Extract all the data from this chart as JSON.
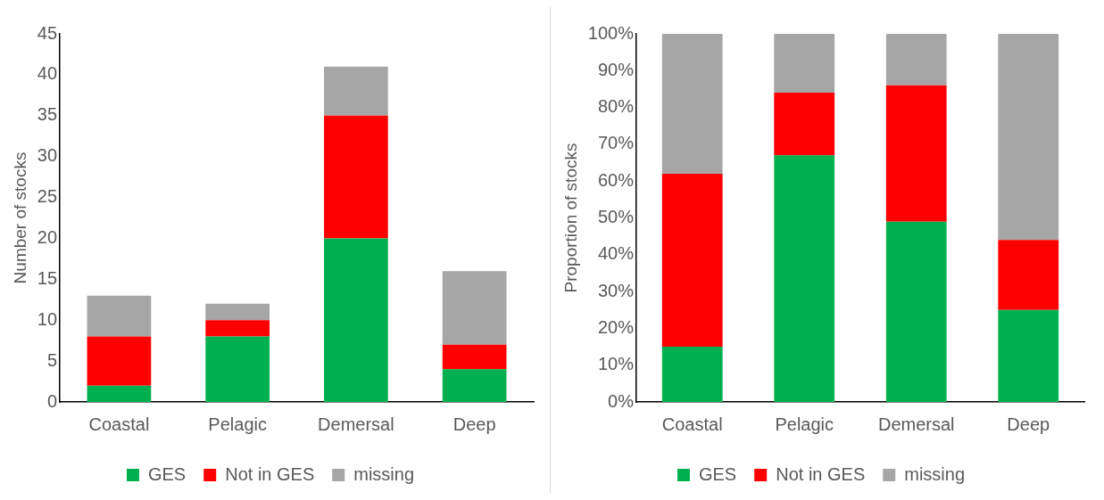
{
  "chart_data": [
    {
      "type": "bar",
      "ylabel": "Number of stocks",
      "categories": [
        "Coastal",
        "Pelagic",
        "Demersal",
        "Deep"
      ],
      "stacked": true,
      "legend": "bottom",
      "ylim": [
        0,
        45
      ],
      "yticks": [
        0,
        5,
        10,
        15,
        20,
        25,
        30,
        35,
        40,
        45
      ],
      "series": [
        {
          "name": "GES",
          "color": "#00b050",
          "values": [
            2,
            8,
            20,
            4
          ]
        },
        {
          "name": "Not in GES",
          "color": "#ff0000",
          "values": [
            6,
            2,
            15,
            3
          ]
        },
        {
          "name": "missing",
          "color": "#a6a6a6",
          "values": [
            5,
            2,
            6,
            9
          ]
        }
      ]
    },
    {
      "type": "bar",
      "ylabel": "Proportion of stocks",
      "categories": [
        "Coastal",
        "Pelagic",
        "Demersal",
        "Deep"
      ],
      "stacked": true,
      "legend": "bottom",
      "ylim": [
        0,
        100
      ],
      "yticks": [
        {
          "value": 0,
          "label": "0%"
        },
        {
          "value": 10,
          "label": "10%"
        },
        {
          "value": 20,
          "label": "20%"
        },
        {
          "value": 30,
          "label": "30%"
        },
        {
          "value": 40,
          "label": "40%"
        },
        {
          "value": 50,
          "label": "50%"
        },
        {
          "value": 60,
          "label": "60%"
        },
        {
          "value": 70,
          "label": "70%"
        },
        {
          "value": 80,
          "label": "80%"
        },
        {
          "value": 90,
          "label": "90%"
        },
        {
          "value": 100,
          "label": "100%"
        }
      ],
      "series": [
        {
          "name": "GES",
          "color": "#00b050",
          "values": [
            15,
            67,
            49,
            25
          ]
        },
        {
          "name": "Not in GES",
          "color": "#ff0000",
          "values": [
            47,
            17,
            37,
            19
          ]
        },
        {
          "name": "missing",
          "color": "#a6a6a6",
          "values": [
            38,
            16,
            14,
            56
          ]
        }
      ]
    }
  ]
}
